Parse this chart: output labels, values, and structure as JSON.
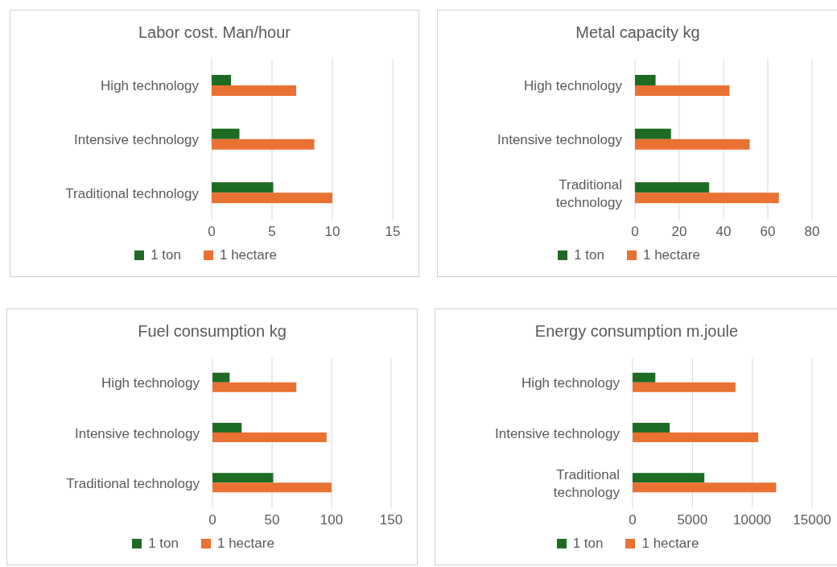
{
  "chart_data": [
    {
      "type": "bar",
      "orientation": "horizontal",
      "title": "Labor cost. Man/hour",
      "categories": [
        "High technology",
        "Intensive technology",
        "Traditional technology"
      ],
      "series": [
        {
          "name": "1 ton",
          "color": "#1e6b23",
          "values": [
            1.6,
            2.3,
            5.1
          ]
        },
        {
          "name": "1 hectare",
          "color": "#e97132",
          "values": [
            7,
            8.5,
            10
          ]
        }
      ],
      "xlim": [
        0,
        15
      ],
      "xticks": [
        0,
        5,
        10,
        15
      ],
      "grid": "x",
      "legend": "bottom"
    },
    {
      "type": "bar",
      "orientation": "horizontal",
      "title": "Metal capacity kg",
      "categories": [
        "High technology",
        "Intensive technology",
        "Traditional technology"
      ],
      "series": [
        {
          "name": "1 ton",
          "color": "#1e6b23",
          "values": [
            9.3,
            16.3,
            33.5
          ]
        },
        {
          "name": "1 hectare",
          "color": "#e97132",
          "values": [
            42.7,
            51.8,
            65
          ]
        }
      ],
      "xlim": [
        0,
        80
      ],
      "xticks": [
        0,
        20,
        40,
        60,
        80
      ],
      "grid": "x",
      "legend": "bottom"
    },
    {
      "type": "bar",
      "orientation": "horizontal",
      "title": "Fuel consumption kg",
      "categories": [
        "High technology",
        "Intensive technology",
        "Traditional technology"
      ],
      "series": [
        {
          "name": "1 ton",
          "color": "#1e6b23",
          "values": [
            14.4,
            24.5,
            51
          ]
        },
        {
          "name": "1 hectare",
          "color": "#e97132",
          "values": [
            70.4,
            95.8,
            100
          ]
        }
      ],
      "xlim": [
        0,
        150
      ],
      "xticks": [
        0,
        50,
        100,
        150
      ],
      "grid": "x",
      "legend": "bottom"
    },
    {
      "type": "bar",
      "orientation": "horizontal",
      "title": "Energy consumption m.joule",
      "categories": [
        "High technology",
        "Intensive technology",
        "Traditional technology"
      ],
      "series": [
        {
          "name": "1 ton",
          "color": "#1e6b23",
          "values": [
            1900,
            3100,
            6000
          ]
        },
        {
          "name": "1 hectare",
          "color": "#e97132",
          "values": [
            8600,
            10500,
            12000
          ]
        }
      ],
      "xlim": [
        0,
        15000
      ],
      "xticks": [
        0,
        5000,
        10000,
        15000
      ],
      "grid": "x",
      "legend": "bottom"
    }
  ]
}
